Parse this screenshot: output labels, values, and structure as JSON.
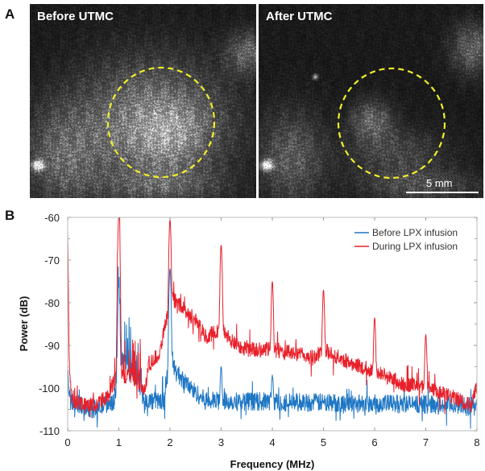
{
  "panel_a": {
    "letter": "A",
    "left_image": {
      "label": "Before UTMC"
    },
    "right_image": {
      "label": "After UTMC"
    },
    "scale_bar": "5 mm",
    "roi_color": "#f2ee2a"
  },
  "panel_b": {
    "letter": "B"
  },
  "chart_data": {
    "type": "line",
    "xlabel": "Frequency (MHz)",
    "ylabel": "Power (dB)",
    "xlim": [
      0,
      8
    ],
    "ylim": [
      -110,
      -60
    ],
    "xticks": [
      "0",
      "1",
      "2",
      "3",
      "4",
      "5",
      "6",
      "7",
      "8"
    ],
    "yticks": [
      "-60",
      "-70",
      "-80",
      "-90",
      "-100",
      "-110"
    ],
    "grid": false,
    "legend_position": "top-right",
    "series": [
      {
        "name": "Before LPX infusion",
        "color": "#1f77c4",
        "baseline": [
          [
            0,
            -97
          ],
          [
            0.05,
            -103
          ],
          [
            0.5,
            -105
          ],
          [
            0.9,
            -103
          ],
          [
            1.0,
            -96
          ],
          [
            1.1,
            -93
          ],
          [
            1.3,
            -97
          ],
          [
            1.5,
            -103
          ],
          [
            1.9,
            -103
          ],
          [
            2.0,
            -91
          ],
          [
            2.1,
            -96
          ],
          [
            2.4,
            -100
          ],
          [
            2.7,
            -103
          ],
          [
            3,
            -103
          ],
          [
            8,
            -104
          ]
        ],
        "peaks": [
          [
            1,
            -76
          ],
          [
            2,
            -72
          ],
          [
            3,
            -95
          ],
          [
            4,
            -97
          ]
        ],
        "noise_db": 2.2
      },
      {
        "name": "During LPX infusion",
        "color": "#e8202a",
        "baseline": [
          [
            0,
            -63
          ],
          [
            0.03,
            -95
          ],
          [
            0.08,
            -103
          ],
          [
            0.5,
            -104
          ],
          [
            0.8,
            -102
          ],
          [
            0.9,
            -98
          ],
          [
            1.2,
            -97
          ],
          [
            1.5,
            -100
          ],
          [
            1.6,
            -94
          ],
          [
            1.8,
            -92
          ],
          [
            1.9,
            -85
          ],
          [
            2.05,
            -79
          ],
          [
            2.3,
            -82
          ],
          [
            2.5,
            -84
          ],
          [
            2.7,
            -88
          ],
          [
            3,
            -86
          ],
          [
            3.2,
            -89
          ],
          [
            3.5,
            -91
          ],
          [
            4,
            -91
          ],
          [
            4.5,
            -92
          ],
          [
            4.8,
            -93
          ],
          [
            5,
            -91
          ],
          [
            5.5,
            -94
          ],
          [
            6,
            -96
          ],
          [
            6.2,
            -97
          ],
          [
            6.5,
            -99
          ],
          [
            7,
            -100
          ],
          [
            7.5,
            -102
          ],
          [
            7.9,
            -104
          ],
          [
            8,
            -99
          ]
        ],
        "peaks": [
          [
            1,
            -60
          ],
          [
            2,
            -60.5
          ],
          [
            3,
            -66.5
          ],
          [
            4,
            -75
          ],
          [
            5,
            -77
          ],
          [
            6,
            -83.5
          ],
          [
            7,
            -87.5
          ]
        ],
        "noise_db": 1.8
      }
    ]
  }
}
